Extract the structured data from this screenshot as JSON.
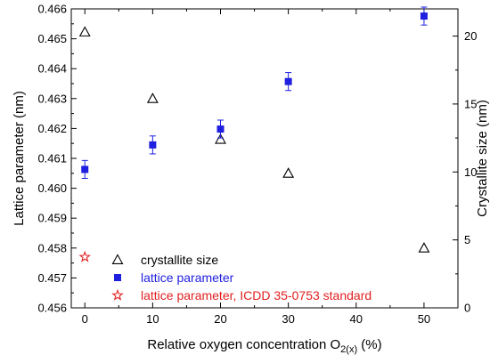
{
  "chart_data": {
    "type": "scatter",
    "title": "",
    "xlabel": {
      "main": "Relative oxygen concentration O",
      "subscript": "2(x)",
      "suffix": " (%)"
    },
    "ylabel_left": "Lattice parameter (nm)",
    "ylabel_right": "Crystallite size (nm)",
    "xlim": [
      -2,
      55
    ],
    "ylim_left": [
      0.456,
      0.466
    ],
    "ylim_right": [
      0,
      22
    ],
    "x_ticks": [
      "0",
      "10",
      "20",
      "30",
      "40",
      "50"
    ],
    "y_left_ticks": [
      "0.456",
      "0.457",
      "0.458",
      "0.459",
      "0.460",
      "0.461",
      "0.462",
      "0.463",
      "0.464",
      "0.465",
      "0.466"
    ],
    "y_right_ticks": [
      "0",
      "5",
      "10",
      "15",
      "20"
    ],
    "grid": false,
    "legend_position": "bottom-left",
    "series": [
      {
        "name": "crystallite size",
        "axis": "right",
        "marker": "open-triangle",
        "color": "#000000",
        "x": [
          0,
          10,
          20,
          30,
          50
        ],
        "y": [
          20.3,
          15.4,
          12.4,
          9.9,
          4.4
        ]
      },
      {
        "name": "lattice parameter",
        "axis": "left",
        "marker": "filled-square",
        "color": "#1f1fe0",
        "x": [
          0,
          10,
          20,
          30,
          50
        ],
        "y": [
          0.46063,
          0.46145,
          0.46198,
          0.46357,
          0.46576
        ],
        "error": [
          0.0003,
          0.0003,
          0.0003,
          0.0003,
          0.0003
        ]
      },
      {
        "name": "lattice parameter, ICDD 35-0753 standard",
        "axis": "left",
        "marker": "open-star",
        "color": "#e02020",
        "x": [
          0
        ],
        "y": [
          0.4577
        ]
      }
    ]
  }
}
